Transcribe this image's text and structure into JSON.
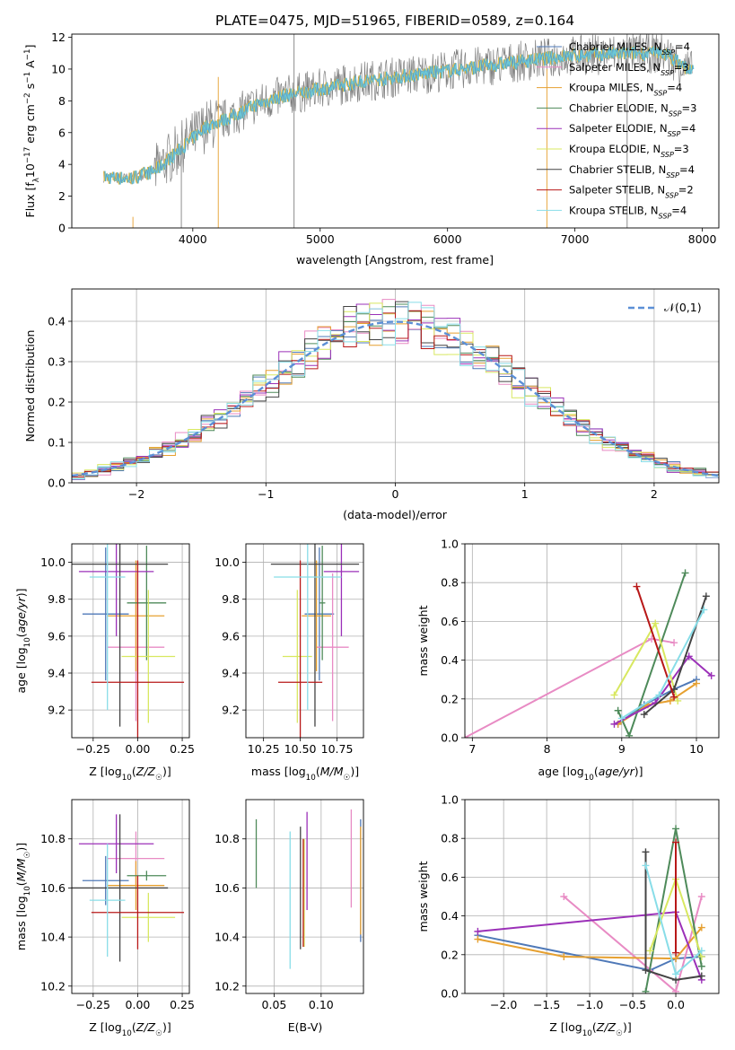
{
  "chart_data": [
    {
      "id": "spectrum",
      "type": "line",
      "title": "PLATE=0475, MJD=51965, FIBERID=0589, z=0.164",
      "xlabel": "wavelength [Angstrom, rest frame]",
      "ylabel": "Flux [f_λ 10^-17 erg cm^-2 s^-1 A^-1]",
      "xlim": [
        3050,
        8130
      ],
      "ylim": [
        0,
        12.2
      ],
      "xticks": [
        4000,
        5000,
        6000,
        7000,
        8000
      ],
      "yticks": [
        0,
        2,
        4,
        6,
        8,
        10,
        12
      ],
      "grid": false,
      "legend_position": "top-right",
      "legend": [
        {
          "label": "Chabrier MILES, N",
          "sub": "SSP",
          "tail": "=4",
          "color": "#4f79b8"
        },
        {
          "label": "Salpeter MILES, N",
          "sub": "SSP",
          "tail": "=3",
          "color": "#e88bc4"
        },
        {
          "label": "Kroupa MILES, N",
          "sub": "SSP",
          "tail": "=4",
          "color": "#e6a030"
        },
        {
          "label": "Chabrier ELODIE, N",
          "sub": "SSP",
          "tail": "=3",
          "color": "#4e8a5a"
        },
        {
          "label": "Salpeter ELODIE, N",
          "sub": "SSP",
          "tail": "=4",
          "color": "#9b30b8"
        },
        {
          "label": "Kroupa ELODIE, N",
          "sub": "SSP",
          "tail": "=3",
          "color": "#d8e860"
        },
        {
          "label": "Chabrier STELIB, N",
          "sub": "SSP",
          "tail": "=4",
          "color": "#444444"
        },
        {
          "label": "Salpeter STELIB, N",
          "sub": "SSP",
          "tail": "=2",
          "color": "#b81818"
        },
        {
          "label": "Kroupa STELIB, N",
          "sub": "SSP",
          "tail": "=4",
          "color": "#88dde8"
        }
      ],
      "data_color": "#808080",
      "model_color": "#6cc9d6",
      "continuum_x": [
        3300,
        3500,
        3700,
        3900,
        4100,
        4300,
        4500,
        4700,
        4900,
        5100,
        5300,
        5500,
        5700,
        5900,
        6100,
        6300,
        6500,
        6700,
        6900,
        7100,
        7300,
        7500,
        7700,
        7900
      ],
      "continuum_y": [
        3.2,
        3.1,
        3.6,
        5.0,
        6.4,
        7.0,
        7.8,
        8.3,
        8.6,
        8.9,
        9.2,
        9.4,
        9.6,
        9.8,
        10.0,
        10.2,
        10.4,
        10.6,
        10.8,
        10.9,
        10.95,
        11.0,
        11.0,
        9.9
      ],
      "spike_x": [
        4795,
        6780,
        7410,
        3530,
        3910,
        4200
      ],
      "spike_top": [
        12.2,
        10.0,
        12.2,
        0.7,
        5.5,
        9.5
      ]
    },
    {
      "id": "residuals",
      "type": "histogram",
      "xlabel": "(data-model)/error",
      "ylabel": "Normed distribution",
      "xlim": [
        -2.5,
        2.5
      ],
      "ylim": [
        0,
        0.48
      ],
      "xticks": [
        -2,
        -1,
        0,
        1,
        2
      ],
      "yticks": [
        0.0,
        0.1,
        0.2,
        0.3,
        0.4
      ],
      "grid": true,
      "legend_position": "top-right",
      "normal_label": "N(0,1)",
      "normal_color": "#5b8fd6",
      "bin_width": 0.1
    },
    {
      "id": "age_vs_Z",
      "type": "errorbar",
      "xlabel": "Z [log10(Z/Z☉)]",
      "ylabel": "age [log10(age/yr)]",
      "xlim": [
        -0.37,
        0.29
      ],
      "ylim": [
        9.05,
        10.1
      ],
      "xticks": [
        -0.25,
        0.0,
        0.25
      ],
      "yticks": [
        9.2,
        9.4,
        9.6,
        9.8,
        10.0
      ],
      "grid": true,
      "points": [
        {
          "x": -0.18,
          "xerr": 0.13,
          "y": 9.72,
          "yerr": 0.36,
          "color": "#4f79b8"
        },
        {
          "x": -0.01,
          "xerr": 0.16,
          "y": 9.54,
          "yerr": 0.4,
          "color": "#e88bc4"
        },
        {
          "x": -0.01,
          "xerr": 0.16,
          "y": 9.71,
          "yerr": 0.3,
          "color": "#e6a030"
        },
        {
          "x": 0.05,
          "xerr": 0.11,
          "y": 9.78,
          "yerr": 0.31,
          "color": "#4e8a5a"
        },
        {
          "x": -0.12,
          "xerr": 0.21,
          "y": 9.95,
          "yerr": 0.35,
          "color": "#9b30b8"
        },
        {
          "x": 0.06,
          "xerr": 0.15,
          "y": 9.49,
          "yerr": 0.36,
          "color": "#d8e860"
        },
        {
          "x": -0.1,
          "xerr": 0.27,
          "y": 9.99,
          "yerr": 0.88,
          "color": "#444444"
        },
        {
          "x": 0.0,
          "xerr": 0.26,
          "y": 9.35,
          "yerr": 0.66,
          "color": "#b81818"
        },
        {
          "x": -0.17,
          "xerr": 0.1,
          "y": 9.92,
          "yerr": 0.72,
          "color": "#88dde8"
        }
      ]
    },
    {
      "id": "age_vs_mass",
      "type": "errorbar",
      "xlabel": "mass [log10(M/M☉)]",
      "ylabel": "",
      "xlim": [
        10.13,
        10.93
      ],
      "ylim": [
        9.05,
        10.1
      ],
      "xticks": [
        10.25,
        10.5,
        10.75
      ],
      "yticks": [
        9.2,
        9.4,
        9.6,
        9.8,
        10.0
      ],
      "grid": true,
      "points": [
        {
          "x": 10.63,
          "xerr": 0.1,
          "y": 9.72,
          "yerr": 0.36,
          "color": "#4f79b8"
        },
        {
          "x": 10.72,
          "xerr": 0.11,
          "y": 9.54,
          "yerr": 0.4,
          "color": "#e88bc4"
        },
        {
          "x": 10.61,
          "xerr": 0.1,
          "y": 9.71,
          "yerr": 0.3,
          "color": "#e6a030"
        },
        {
          "x": 10.65,
          "xerr": 0.02,
          "y": 9.78,
          "yerr": 0.31,
          "color": "#4e8a5a"
        },
        {
          "x": 10.78,
          "xerr": 0.12,
          "y": 9.95,
          "yerr": 0.35,
          "color": "#9b30b8"
        },
        {
          "x": 10.48,
          "xerr": 0.1,
          "y": 9.49,
          "yerr": 0.36,
          "color": "#d8e860"
        },
        {
          "x": 10.6,
          "xerr": 0.3,
          "y": 9.99,
          "yerr": 0.88,
          "color": "#444444"
        },
        {
          "x": 10.5,
          "xerr": 0.15,
          "y": 9.35,
          "yerr": 0.66,
          "color": "#b81818"
        },
        {
          "x": 10.55,
          "xerr": 0.23,
          "y": 9.92,
          "yerr": 0.72,
          "color": "#88dde8"
        }
      ]
    },
    {
      "id": "weight_vs_age",
      "type": "line",
      "xlabel": "age [log10(age/yr)]",
      "ylabel": "mass weight",
      "xlim": [
        6.9,
        10.3
      ],
      "ylim": [
        0,
        1.0
      ],
      "xticks": [
        7,
        8,
        9,
        10
      ],
      "yticks": [
        0.0,
        0.2,
        0.4,
        0.6,
        0.8,
        1.0
      ],
      "grid": true,
      "series": [
        {
          "color": "#4f79b8",
          "x": [
            8.95,
            9.3,
            9.7,
            10.0
          ],
          "y": [
            0.07,
            0.17,
            0.25,
            0.3
          ]
        },
        {
          "color": "#e88bc4",
          "x": [
            6.9,
            9.4,
            9.7
          ],
          "y": [
            0.0,
            0.51,
            0.49
          ]
        },
        {
          "color": "#e6a030",
          "x": [
            8.95,
            9.35,
            9.65,
            10.0
          ],
          "y": [
            0.07,
            0.17,
            0.19,
            0.28
          ]
        },
        {
          "color": "#4e8a5a",
          "x": [
            8.95,
            9.1,
            9.85
          ],
          "y": [
            0.14,
            0.01,
            0.85
          ]
        },
        {
          "color": "#9b30b8",
          "x": [
            8.9,
            9.45,
            9.9,
            10.2
          ],
          "y": [
            0.07,
            0.18,
            0.42,
            0.32
          ]
        },
        {
          "color": "#d8e860",
          "x": [
            8.9,
            9.45,
            9.75
          ],
          "y": [
            0.22,
            0.59,
            0.19
          ]
        },
        {
          "color": "#444444",
          "x": [
            9.3,
            9.7,
            10.13
          ],
          "y": [
            0.12,
            0.25,
            0.73
          ]
        },
        {
          "color": "#b81818",
          "x": [
            9.2,
            9.7
          ],
          "y": [
            0.78,
            0.21
          ]
        },
        {
          "color": "#88dde8",
          "x": [
            9.0,
            9.5,
            10.1
          ],
          "y": [
            0.1,
            0.22,
            0.66
          ]
        }
      ]
    },
    {
      "id": "mass_vs_Z",
      "type": "errorbar",
      "xlabel": "Z [log10(Z/Z☉)]",
      "ylabel": "mass [log10(M/M☉)]",
      "xlim": [
        -0.37,
        0.29
      ],
      "ylim": [
        10.17,
        10.96
      ],
      "xticks": [
        -0.25,
        0.0,
        0.25
      ],
      "yticks": [
        10.2,
        10.4,
        10.6,
        10.8
      ],
      "grid": true,
      "points": [
        {
          "x": -0.18,
          "xerr": 0.13,
          "y": 10.63,
          "yerr": 0.1,
          "color": "#4f79b8"
        },
        {
          "x": -0.01,
          "xerr": 0.16,
          "y": 10.72,
          "yerr": 0.11,
          "color": "#e88bc4"
        },
        {
          "x": -0.01,
          "xerr": 0.16,
          "y": 10.61,
          "yerr": 0.1,
          "color": "#e6a030"
        },
        {
          "x": 0.05,
          "xerr": 0.11,
          "y": 10.65,
          "yerr": 0.02,
          "color": "#4e8a5a"
        },
        {
          "x": -0.12,
          "xerr": 0.21,
          "y": 10.78,
          "yerr": 0.12,
          "color": "#9b30b8"
        },
        {
          "x": 0.06,
          "xerr": 0.15,
          "y": 10.48,
          "yerr": 0.1,
          "color": "#d8e860"
        },
        {
          "x": -0.1,
          "xerr": 0.27,
          "y": 10.6,
          "yerr": 0.3,
          "color": "#444444"
        },
        {
          "x": 0.0,
          "xerr": 0.26,
          "y": 10.5,
          "yerr": 0.15,
          "color": "#b81818"
        },
        {
          "x": -0.17,
          "xerr": 0.1,
          "y": 10.55,
          "yerr": 0.23,
          "color": "#88dde8"
        }
      ]
    },
    {
      "id": "mass_vs_ebv",
      "type": "errorbar",
      "xlabel": "E(B-V)",
      "ylabel": "",
      "xlim": [
        0.02,
        0.145
      ],
      "ylim": [
        10.17,
        10.96
      ],
      "xticks": [
        0.05,
        0.1
      ],
      "yticks": [
        10.2,
        10.4,
        10.6,
        10.8
      ],
      "grid": true,
      "points": [
        {
          "x": 0.142,
          "y": 10.63,
          "yerr": 0.25,
          "color": "#4f79b8"
        },
        {
          "x": 0.132,
          "y": 10.72,
          "yerr": 0.2,
          "color": "#e88bc4"
        },
        {
          "x": 0.142,
          "y": 10.63,
          "yerr": 0.22,
          "color": "#e6a030"
        },
        {
          "x": 0.031,
          "y": 10.74,
          "yerr": 0.14,
          "color": "#4e8a5a"
        },
        {
          "x": 0.085,
          "y": 10.71,
          "yerr": 0.2,
          "color": "#9b30b8"
        },
        {
          "x": 0.082,
          "y": 10.58,
          "yerr": 0.22,
          "color": "#d8e860"
        },
        {
          "x": 0.078,
          "y": 10.6,
          "yerr": 0.25,
          "color": "#444444"
        },
        {
          "x": 0.081,
          "y": 10.58,
          "yerr": 0.22,
          "color": "#b81818"
        },
        {
          "x": 0.067,
          "y": 10.55,
          "yerr": 0.28,
          "color": "#88dde8"
        }
      ]
    },
    {
      "id": "weight_vs_Z",
      "type": "line",
      "xlabel": "Z [log10(Z/Z☉)]",
      "ylabel": "mass weight",
      "xlim": [
        -2.45,
        0.5
      ],
      "ylim": [
        0,
        1.0
      ],
      "xticks": [
        -2.0,
        -1.5,
        -1.0,
        -0.5,
        0.0
      ],
      "yticks": [
        0.0,
        0.2,
        0.4,
        0.6,
        0.8,
        1.0
      ],
      "grid": true,
      "series": [
        {
          "color": "#4f79b8",
          "x": [
            -2.3,
            -0.3,
            0.0,
            0.3
          ],
          "y": [
            0.3,
            0.12,
            0.18,
            0.19
          ]
        },
        {
          "color": "#e88bc4",
          "x": [
            -1.3,
            0.0,
            0.3
          ],
          "y": [
            0.5,
            0.01,
            0.5
          ]
        },
        {
          "color": "#e6a030",
          "x": [
            -2.3,
            -1.3,
            0.0,
            0.3
          ],
          "y": [
            0.28,
            0.19,
            0.18,
            0.34
          ]
        },
        {
          "color": "#4e8a5a",
          "x": [
            -0.35,
            0.0,
            0.3
          ],
          "y": [
            0.01,
            0.85,
            0.14
          ]
        },
        {
          "color": "#9b30b8",
          "x": [
            -2.3,
            0.0,
            0.3
          ],
          "y": [
            0.32,
            0.42,
            0.07
          ]
        },
        {
          "color": "#d8e860",
          "x": [
            -0.3,
            0.0,
            0.3
          ],
          "y": [
            0.22,
            0.59,
            0.19
          ]
        },
        {
          "color": "#444444",
          "x": [
            -0.35,
            -0.35,
            0.0,
            0.3
          ],
          "y": [
            0.73,
            0.12,
            0.07,
            0.09
          ]
        },
        {
          "color": "#b81818",
          "x": [
            0.0,
            0.0
          ],
          "y": [
            0.78,
            0.21
          ]
        },
        {
          "color": "#88dde8",
          "x": [
            -0.35,
            0.0,
            0.3
          ],
          "y": [
            0.66,
            0.1,
            0.22
          ]
        }
      ]
    }
  ]
}
